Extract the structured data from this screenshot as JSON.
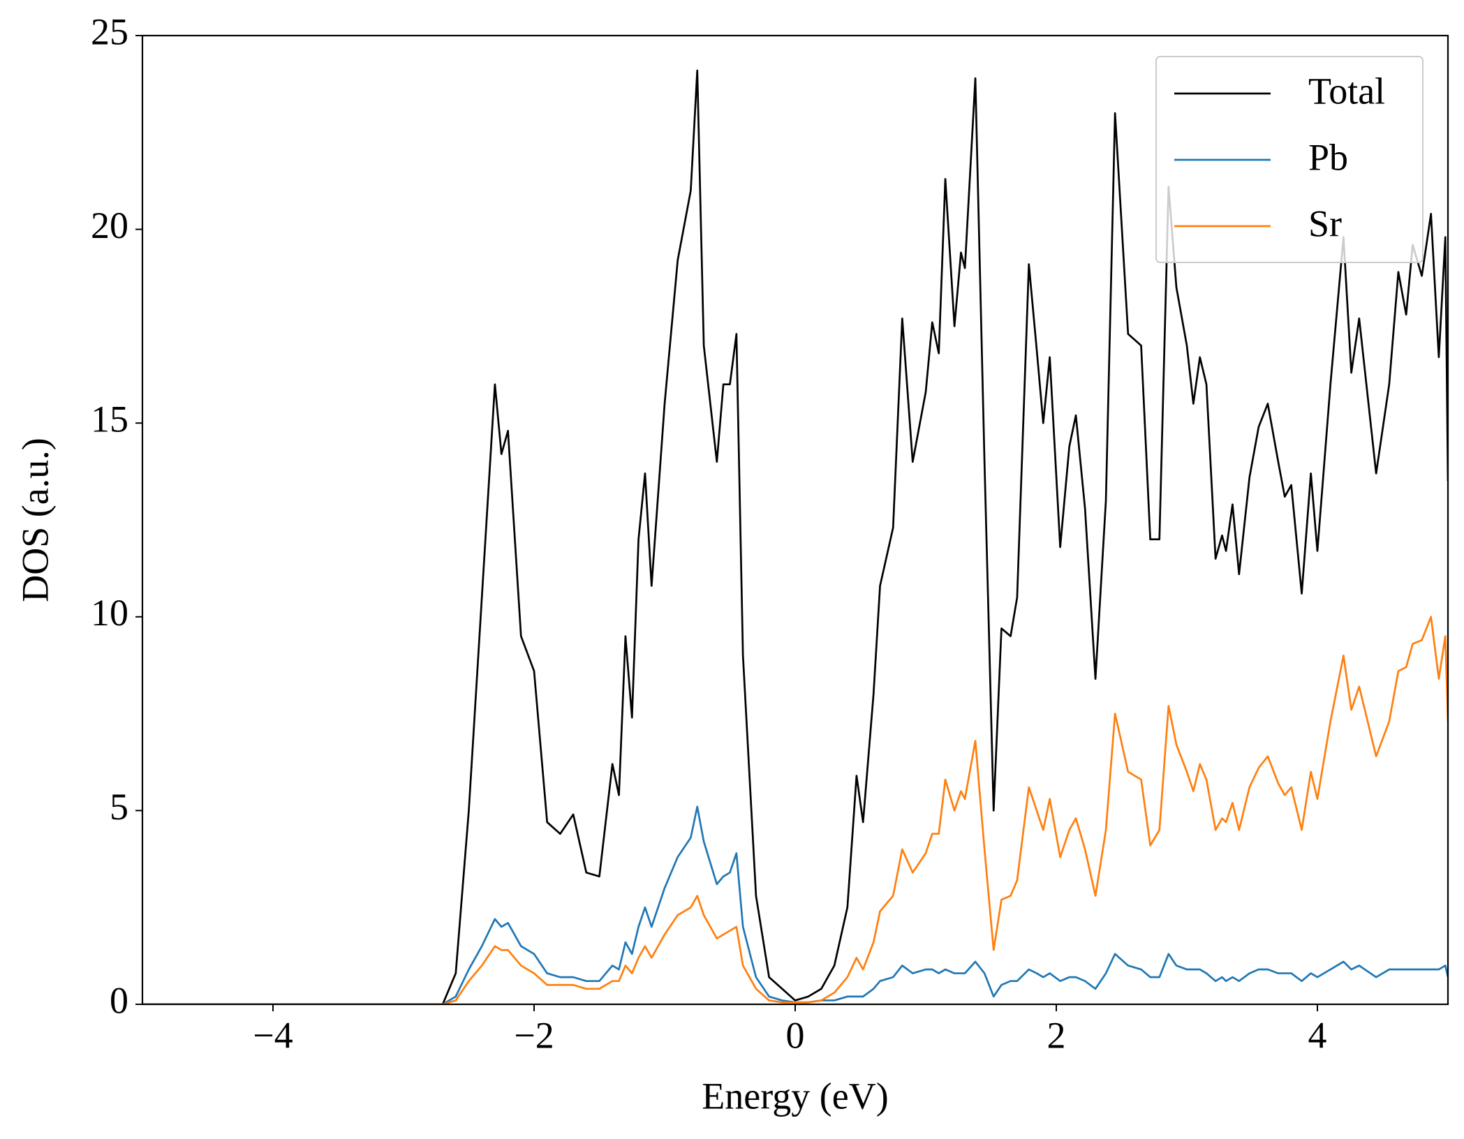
{
  "chart_data": {
    "type": "line",
    "xlabel": "Energy (eV)",
    "ylabel": "DOS (a.u.)",
    "x": [
      -5,
      -4,
      -3,
      -2.7,
      -2.6,
      -2.5,
      -2.4,
      -2.3,
      -2.25,
      -2.2,
      -2.1,
      -2.0,
      -1.9,
      -1.8,
      -1.7,
      -1.6,
      -1.5,
      -1.4,
      -1.35,
      -1.3,
      -1.25,
      -1.2,
      -1.15,
      -1.1,
      -1.0,
      -0.9,
      -0.8,
      -0.75,
      -0.7,
      -0.6,
      -0.55,
      -0.5,
      -0.45,
      -0.4,
      -0.3,
      -0.2,
      -0.1,
      0,
      0.1,
      0.2,
      0.3,
      0.4,
      0.47,
      0.52,
      0.6,
      0.65,
      0.75,
      0.82,
      0.9,
      1.0,
      1.05,
      1.1,
      1.15,
      1.22,
      1.27,
      1.3,
      1.38,
      1.45,
      1.52,
      1.58,
      1.65,
      1.7,
      1.79,
      1.85,
      1.9,
      1.95,
      2.03,
      2.1,
      2.15,
      2.22,
      2.3,
      2.38,
      2.45,
      2.55,
      2.65,
      2.72,
      2.79,
      2.86,
      2.92,
      3.0,
      3.05,
      3.1,
      3.15,
      3.22,
      3.27,
      3.3,
      3.35,
      3.4,
      3.48,
      3.55,
      3.62,
      3.7,
      3.75,
      3.8,
      3.88,
      3.95,
      4.0,
      4.1,
      4.2,
      4.26,
      4.32,
      4.45,
      4.55,
      4.62,
      4.68,
      4.73,
      4.8,
      4.87,
      4.93,
      4.98,
      5.0
    ],
    "series": [
      {
        "name": "Total",
        "color": "#000000",
        "values": [
          0,
          0,
          0,
          0,
          0.8,
          5,
          10.5,
          16,
          14.2,
          14.8,
          9.5,
          8.6,
          4.7,
          4.4,
          4.9,
          3.4,
          3.3,
          6.2,
          5.4,
          9.5,
          7.4,
          12,
          13.7,
          10.8,
          15.5,
          19.2,
          21,
          24.1,
          17,
          14,
          16,
          16,
          17.3,
          9,
          2.8,
          0.7,
          0.4,
          0.1,
          0.2,
          0.4,
          1.0,
          2.5,
          5.9,
          4.7,
          8,
          10.8,
          12.3,
          17.7,
          14,
          15.8,
          17.6,
          16.8,
          21.3,
          17.5,
          19.4,
          19,
          23.9,
          14,
          5,
          9.7,
          9.5,
          10.5,
          19.1,
          16.9,
          15,
          16.7,
          11.8,
          14.4,
          15.2,
          12.8,
          8.4,
          13,
          23,
          17.3,
          17,
          12,
          12,
          21.1,
          18.5,
          17,
          15.5,
          16.7,
          16,
          11.5,
          12.1,
          11.7,
          12.9,
          11.1,
          13.6,
          14.9,
          15.5,
          14,
          13.1,
          13.4,
          10.6,
          13.7,
          11.7,
          16,
          19.8,
          16.3,
          17.7,
          13.7,
          16,
          18.9,
          17.8,
          19.6,
          18.8,
          20.4,
          16.7,
          19.8,
          13.5
        ]
      },
      {
        "name": "Pb",
        "color": "#1f77b4",
        "values": [
          0,
          0,
          0,
          0,
          0.2,
          0.9,
          1.5,
          2.2,
          2.0,
          2.1,
          1.5,
          1.3,
          0.8,
          0.7,
          0.7,
          0.6,
          0.6,
          1.0,
          0.9,
          1.6,
          1.3,
          2.0,
          2.5,
          2.0,
          3.0,
          3.8,
          4.3,
          5.1,
          4.2,
          3.1,
          3.3,
          3.4,
          3.9,
          2.0,
          0.7,
          0.2,
          0.1,
          0.05,
          0.05,
          0.1,
          0.1,
          0.2,
          0.2,
          0.2,
          0.4,
          0.6,
          0.7,
          1.0,
          0.8,
          0.9,
          0.9,
          0.8,
          0.9,
          0.8,
          0.8,
          0.8,
          1.1,
          0.8,
          0.2,
          0.5,
          0.6,
          0.6,
          0.9,
          0.8,
          0.7,
          0.8,
          0.6,
          0.7,
          0.7,
          0.6,
          0.4,
          0.8,
          1.3,
          1.0,
          0.9,
          0.7,
          0.7,
          1.3,
          1.0,
          0.9,
          0.9,
          0.9,
          0.8,
          0.6,
          0.7,
          0.6,
          0.7,
          0.6,
          0.8,
          0.9,
          0.9,
          0.8,
          0.8,
          0.8,
          0.6,
          0.8,
          0.7,
          0.9,
          1.1,
          0.9,
          1.0,
          0.7,
          0.9,
          0.9,
          0.9,
          0.9,
          0.9,
          0.9,
          0.9,
          1.0,
          0.7
        ]
      },
      {
        "name": "Sr",
        "color": "#ff7f0e",
        "values": [
          0,
          0,
          0,
          0,
          0.1,
          0.6,
          1.0,
          1.5,
          1.4,
          1.4,
          1.0,
          0.8,
          0.5,
          0.5,
          0.5,
          0.4,
          0.4,
          0.6,
          0.6,
          1.0,
          0.8,
          1.2,
          1.5,
          1.2,
          1.8,
          2.3,
          2.5,
          2.8,
          2.3,
          1.7,
          1.8,
          1.9,
          2.0,
          1.0,
          0.4,
          0.1,
          0.05,
          0.05,
          0.05,
          0.1,
          0.3,
          0.7,
          1.2,
          0.9,
          1.6,
          2.4,
          2.8,
          4.0,
          3.4,
          3.9,
          4.4,
          4.4,
          5.8,
          5.0,
          5.5,
          5.3,
          6.8,
          4,
          1.4,
          2.7,
          2.8,
          3.2,
          5.6,
          5.0,
          4.5,
          5.3,
          3.8,
          4.5,
          4.8,
          4.0,
          2.8,
          4.5,
          7.5,
          6,
          5.8,
          4.1,
          4.5,
          7.7,
          6.7,
          6.0,
          5.5,
          6.2,
          5.8,
          4.5,
          4.8,
          4.7,
          5.2,
          4.5,
          5.6,
          6.1,
          6.4,
          5.7,
          5.4,
          5.6,
          4.5,
          6.0,
          5.3,
          7.3,
          9.0,
          7.6,
          8.2,
          6.4,
          7.3,
          8.6,
          8.7,
          9.3,
          9.4,
          10.0,
          8.4,
          9.5,
          7.3
        ]
      }
    ],
    "xlim": [
      -5,
      5
    ],
    "xticks": [
      {
        "value": -4,
        "label": "−4"
      },
      {
        "value": -2,
        "label": "−2"
      },
      0,
      2,
      4
    ],
    "ylim": [
      0,
      25
    ],
    "yticks": [
      0,
      5,
      10,
      15,
      20,
      25
    ],
    "grid": false,
    "legend": "upper right"
  }
}
